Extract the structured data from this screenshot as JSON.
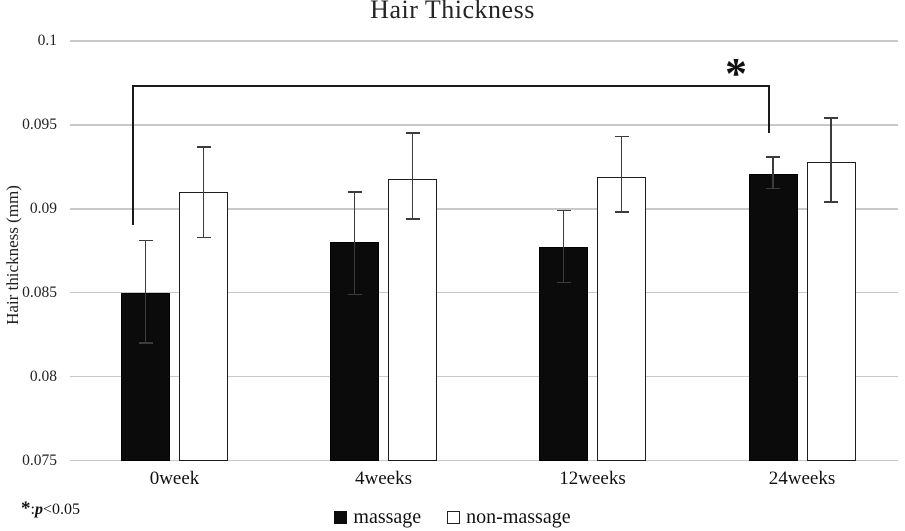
{
  "title": "Hair Thickness",
  "y_axis": {
    "title": "Hair thickness (mm)",
    "tick_labels": [
      "0.1",
      "0.095",
      "0.09",
      "0.085",
      "0.08",
      "0.075"
    ]
  },
  "x_axis": {
    "categories": [
      "0week",
      "4weeks",
      "12weeks",
      "24weeks"
    ]
  },
  "legend": {
    "items": [
      {
        "label": "massage",
        "swatch": "filled-black-square"
      },
      {
        "label": "non-massage",
        "swatch": "outlined-white-square"
      }
    ]
  },
  "footnote": {
    "symbol": "*",
    "colon": ":",
    "p": "p",
    "value": "<0.05"
  },
  "colors": {
    "massage_fill": "#0b0b0b",
    "non_massage_fill": "#ffffff",
    "bar_outline": "#1d1d1d",
    "gridline": "#c9c9c9",
    "error_bar": "#3c3c3c"
  },
  "chart_data": {
    "type": "bar",
    "title": "Hair Thickness",
    "ylabel": "Hair thickness (mm)",
    "xlabel": "",
    "categories": [
      "0week",
      "4weeks",
      "12weeks",
      "24weeks"
    ],
    "series": [
      {
        "name": "massage",
        "fill": "#0b0b0b",
        "values": [
          0.085,
          0.088,
          0.0877,
          0.0921
        ],
        "error_low": [
          0.082,
          0.0849,
          0.0856,
          0.0912
        ],
        "error_high": [
          0.0881,
          0.091,
          0.0899,
          0.0931
        ]
      },
      {
        "name": "non-massage",
        "fill": "#ffffff",
        "values": [
          0.091,
          0.0918,
          0.0919,
          0.0928
        ],
        "error_low": [
          0.0883,
          0.0894,
          0.0898,
          0.0904
        ],
        "error_high": [
          0.0937,
          0.0945,
          0.0943,
          0.0954
        ]
      }
    ],
    "ylim": [
      0.075,
      0.1
    ],
    "ytick_step": 0.005,
    "ytick_labels": [
      "0.1",
      "0.095",
      "0.09",
      "0.085",
      "0.08",
      "0.075"
    ],
    "grid": true,
    "legend_position": "bottom",
    "significance": {
      "marker": "*",
      "note": "*: p<0.05",
      "series": "massage",
      "between": [
        "0week",
        "24weeks"
      ]
    }
  }
}
